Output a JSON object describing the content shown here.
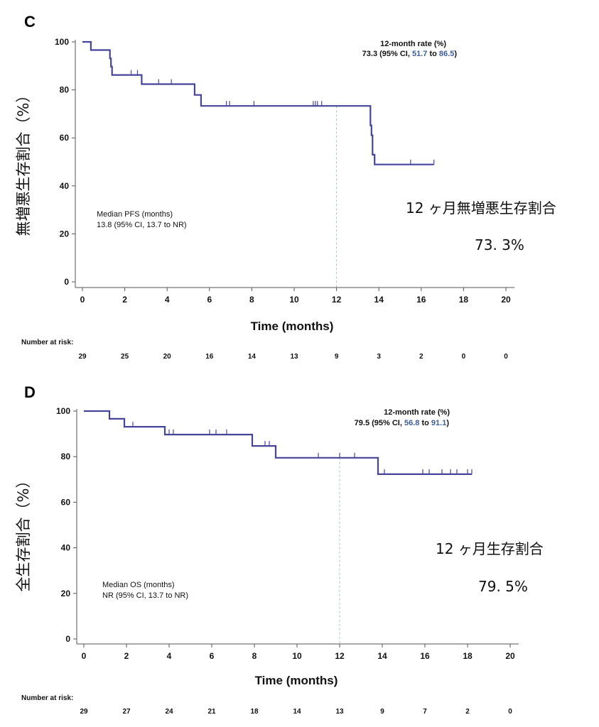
{
  "chart_data": [
    {
      "type": "line",
      "panel": "C",
      "ylabel": "無増悪生存割合（%）",
      "xlabel": "Time (months)",
      "xlim": [
        0,
        20
      ],
      "ylim": [
        0,
        100
      ],
      "xticks": [
        0,
        2,
        4,
        6,
        8,
        10,
        12,
        14,
        16,
        18,
        20
      ],
      "yticks": [
        0,
        20,
        40,
        60,
        80,
        100
      ],
      "series": [
        {
          "color": "#46459a",
          "x": [
            0,
            0.4,
            0.4,
            1.3,
            1.3,
            1.35,
            1.35,
            1.4,
            1.4,
            2.8,
            2.8,
            5.3,
            5.3,
            5.6,
            5.6,
            13.6,
            13.6,
            13.65,
            13.65,
            13.7,
            13.7,
            13.8,
            13.8,
            16.6
          ],
          "y": [
            100,
            100,
            96.6,
            96.6,
            93.1,
            93.1,
            89.7,
            89.7,
            86.2,
            86.2,
            82.4,
            82.4,
            77.9,
            77.9,
            73.3,
            73.3,
            65.2,
            65.2,
            61.1,
            61.1,
            53.0,
            53.0,
            48.9,
            48.9
          ]
        }
      ],
      "censor_marks": [
        {
          "x": 2.3,
          "y": 86.2
        },
        {
          "x": 2.6,
          "y": 86.2
        },
        {
          "x": 3.6,
          "y": 82.4
        },
        {
          "x": 4.2,
          "y": 82.4
        },
        {
          "x": 6.8,
          "y": 73.3
        },
        {
          "x": 6.95,
          "y": 73.3
        },
        {
          "x": 8.1,
          "y": 73.3
        },
        {
          "x": 10.9,
          "y": 73.3
        },
        {
          "x": 11.0,
          "y": 73.3
        },
        {
          "x": 11.1,
          "y": 73.3
        },
        {
          "x": 11.3,
          "y": 73.3
        },
        {
          "x": 15.5,
          "y": 48.9
        },
        {
          "x": 16.6,
          "y": 48.9
        }
      ],
      "reference_x": 12,
      "rate_title": "12-month rate (%)",
      "rate_prefix": "73.3 (95% CI, ",
      "rate_lo": "51.7",
      "rate_mid": " to ",
      "rate_hi": "86.5",
      "rate_suffix": ")",
      "median_title": "Median PFS (months)",
      "median_value": "13.8 (95% CI, 13.7 to NR)",
      "risk_label": "Number at risk:",
      "risk": [
        "29",
        "25",
        "20",
        "16",
        "14",
        "13",
        "9",
        "3",
        "2",
        "0",
        "0"
      ],
      "jp_label": "12 ヶ月無増悪生存割合",
      "jp_value": "73. 3%"
    },
    {
      "type": "line",
      "panel": "D",
      "ylabel": "全生存割合（%）",
      "xlabel": "Time (months)",
      "xlim": [
        0,
        20
      ],
      "ylim": [
        0,
        100
      ],
      "xticks": [
        0,
        2,
        4,
        6,
        8,
        10,
        12,
        14,
        16,
        18,
        20
      ],
      "yticks": [
        0,
        20,
        40,
        60,
        80,
        100
      ],
      "series": [
        {
          "color": "#46459a",
          "x": [
            0,
            1.2,
            1.2,
            1.9,
            1.9,
            3.8,
            3.8,
            7.9,
            7.9,
            9.0,
            9.0,
            13.8,
            13.8,
            18.2
          ],
          "y": [
            100,
            100,
            96.6,
            96.6,
            93.1,
            93.1,
            89.7,
            89.7,
            84.7,
            84.7,
            79.5,
            79.5,
            72.3,
            72.3
          ]
        }
      ],
      "censor_marks": [
        {
          "x": 2.3,
          "y": 93.1
        },
        {
          "x": 4.0,
          "y": 89.7
        },
        {
          "x": 4.2,
          "y": 89.7
        },
        {
          "x": 5.9,
          "y": 89.7
        },
        {
          "x": 6.2,
          "y": 89.7
        },
        {
          "x": 6.7,
          "y": 89.7
        },
        {
          "x": 8.5,
          "y": 84.7
        },
        {
          "x": 8.7,
          "y": 84.7
        },
        {
          "x": 11.0,
          "y": 79.5
        },
        {
          "x": 12.0,
          "y": 79.5
        },
        {
          "x": 12.7,
          "y": 79.5
        },
        {
          "x": 14.1,
          "y": 72.3
        },
        {
          "x": 15.9,
          "y": 72.3
        },
        {
          "x": 16.2,
          "y": 72.3
        },
        {
          "x": 16.8,
          "y": 72.3
        },
        {
          "x": 17.2,
          "y": 72.3
        },
        {
          "x": 17.5,
          "y": 72.3
        },
        {
          "x": 18.0,
          "y": 72.3
        },
        {
          "x": 18.2,
          "y": 72.3
        }
      ],
      "reference_x": 12,
      "rate_title": "12-month rate (%)",
      "rate_prefix": "79.5 (95% CI, ",
      "rate_lo": "56.8",
      "rate_mid": " to ",
      "rate_hi": "91.1",
      "rate_suffix": ")",
      "median_title": "Median OS (months)",
      "median_value": "NR (95% CI, 13.7 to NR)",
      "risk_label": "Number at risk:",
      "risk": [
        "29",
        "27",
        "24",
        "21",
        "18",
        "14",
        "13",
        "9",
        "7",
        "2",
        "0"
      ],
      "jp_label": "12 ヶ月生存割合",
      "jp_value": "79. 5%"
    }
  ]
}
